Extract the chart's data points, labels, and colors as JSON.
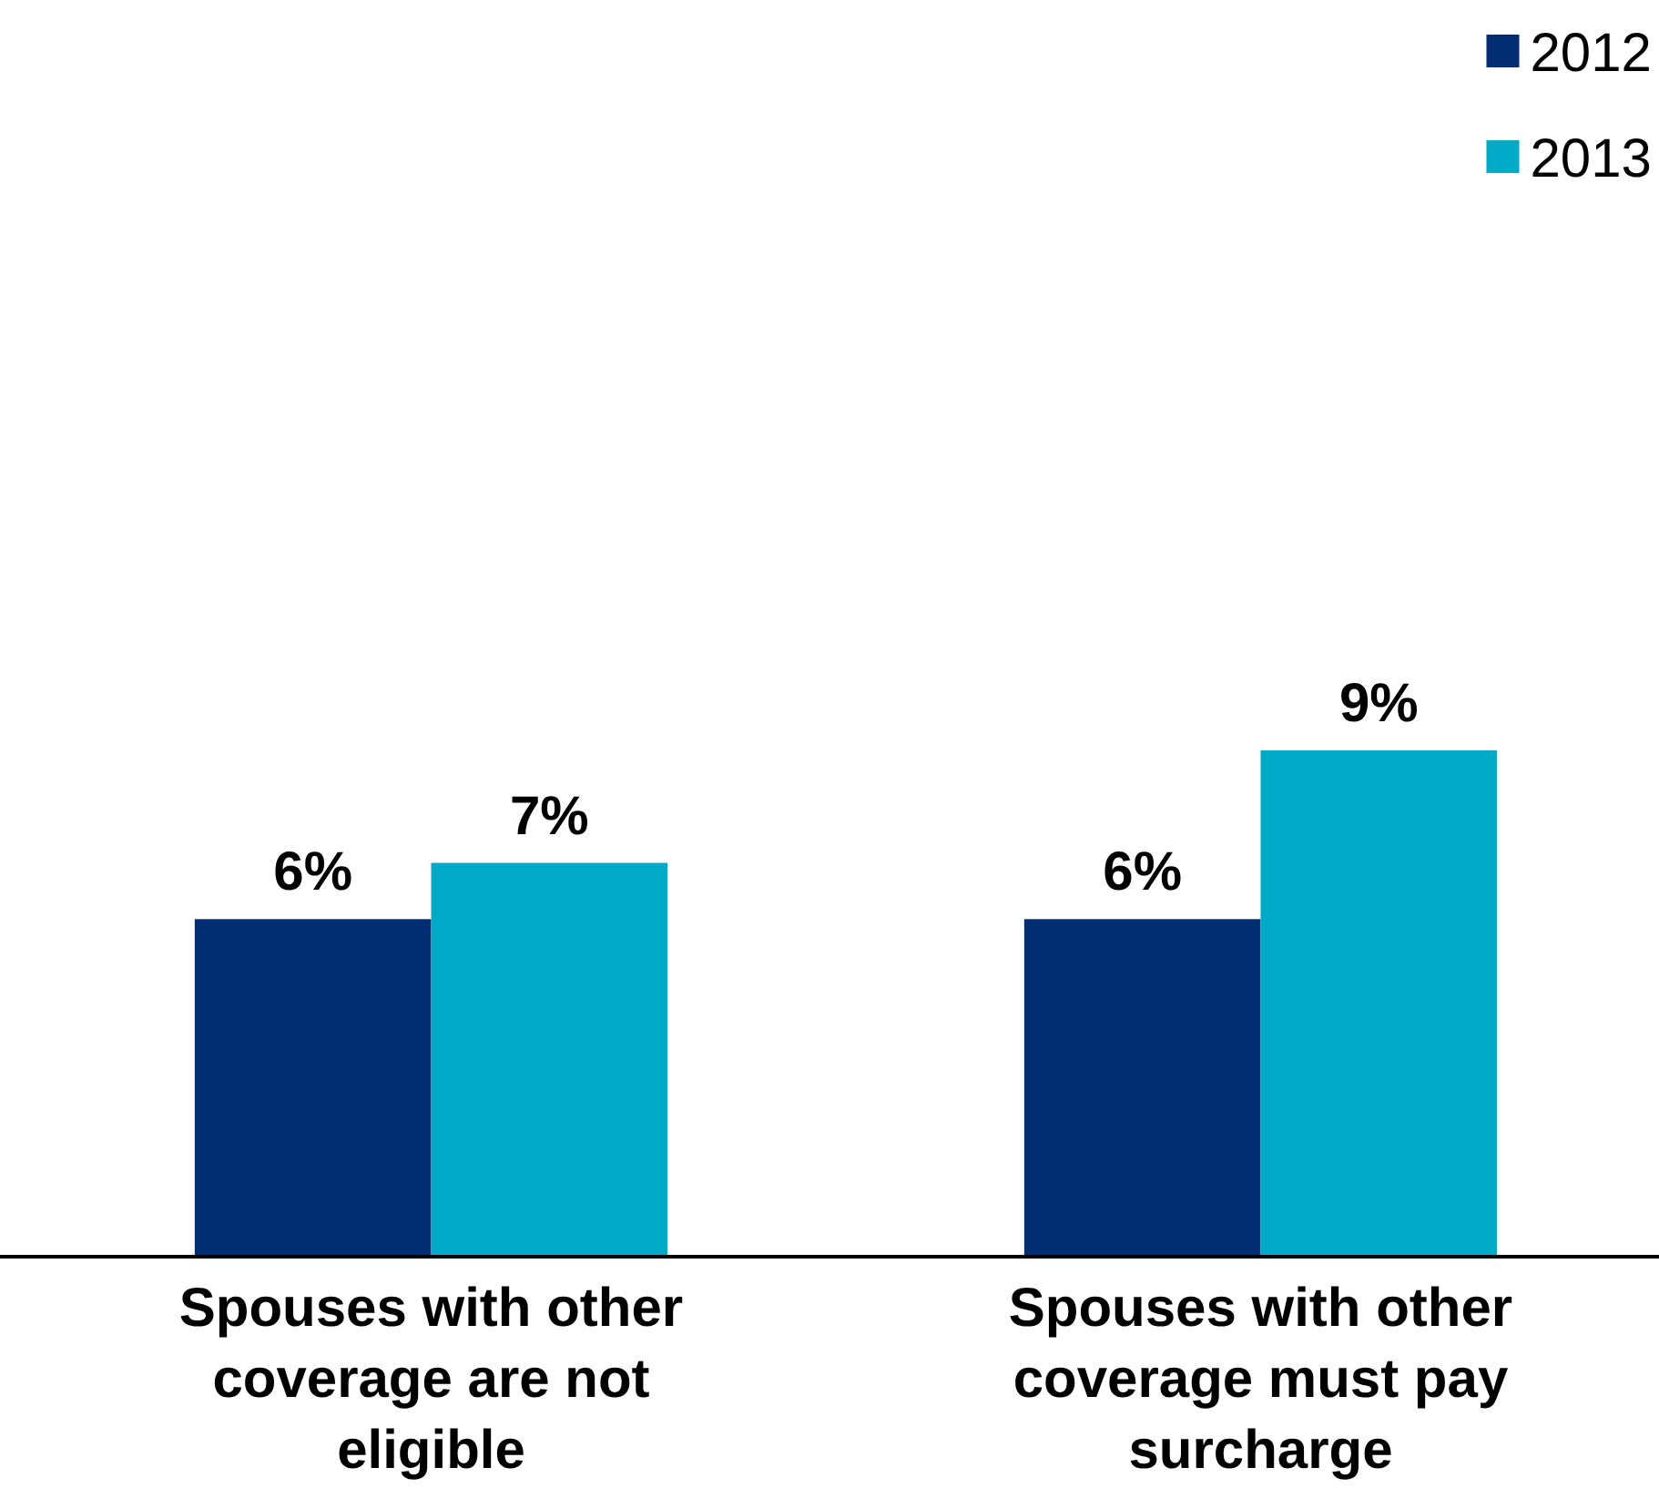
{
  "chart_data": {
    "type": "bar",
    "categories": [
      "Spouses with other coverage are not eligible",
      "Spouses with other coverage must pay surcharge"
    ],
    "series": [
      {
        "name": "2012",
        "color": "#002d72",
        "values": [
          6,
          6
        ],
        "value_labels": [
          "6%",
          "6%"
        ]
      },
      {
        "name": "2013",
        "color": "#00a9c6",
        "values": [
          7,
          9
        ],
        "value_labels": [
          "7%",
          "9%"
        ]
      }
    ],
    "legend": "top right"
  }
}
